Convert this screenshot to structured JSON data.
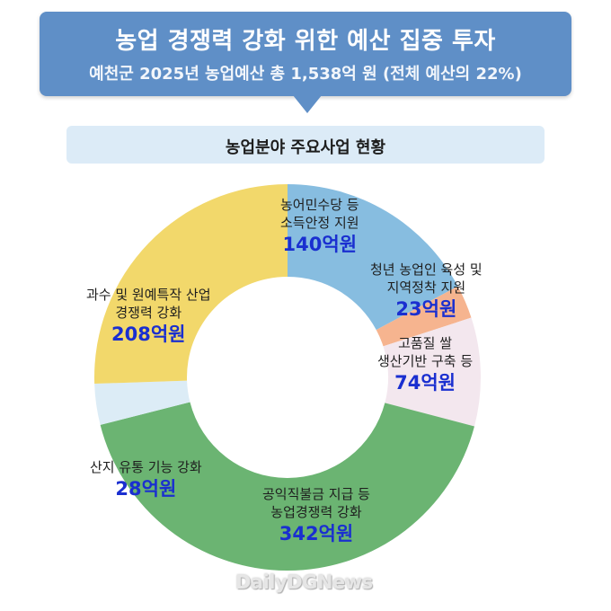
{
  "header": {
    "title": "농업 경쟁력 강화 위한 예산 집중 투자",
    "subtitle": "예천군 2025년 농업예산 총 1,538억 원 (전체 예산의 22%)"
  },
  "section": {
    "title": "농업분야 주요사업 현황"
  },
  "chart_data": {
    "type": "pie",
    "unit": "억원",
    "slices": [
      {
        "label": [
          "농어민수당 등",
          "소득안정 지원"
        ],
        "value": 140,
        "display": "140억원",
        "color": "#87bde0"
      },
      {
        "label": [
          "청년 농업인 육성 및",
          "지역정착 지원"
        ],
        "value": 23,
        "display": "23억원",
        "color": "#f6b48f"
      },
      {
        "label": [
          "고품질 쌀",
          "생산기반 구축 등"
        ],
        "value": 74,
        "display": "74억원",
        "color": "#f3e7ee"
      },
      {
        "label": [
          "공익직불금 지급 등",
          "농업경쟁력 강화"
        ],
        "value": 342,
        "display": "342억원",
        "color": "#6bb472"
      },
      {
        "label": [
          "산지 유통 기능 강화"
        ],
        "value": 28,
        "display": "28억원",
        "color": "#dcecf6"
      },
      {
        "label": [
          "과수 및 원예특작 산업",
          "경쟁력 강화"
        ],
        "value": 208,
        "display": "208억원",
        "color": "#f2d86b"
      }
    ]
  },
  "watermark": "DailyDGNews"
}
